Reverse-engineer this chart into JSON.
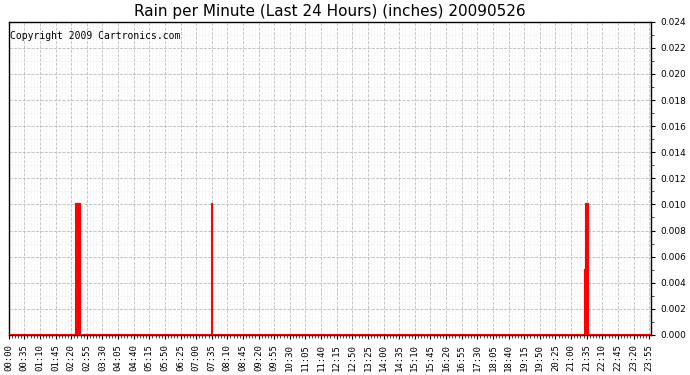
{
  "title": "Rain per Minute (Last 24 Hours) (inches) 20090526",
  "copyright_text": "Copyright 2009 Cartronics.com",
  "ylim": [
    0,
    0.024
  ],
  "yticks": [
    0.0,
    0.002,
    0.004,
    0.006,
    0.008,
    0.01,
    0.012,
    0.014,
    0.016,
    0.018,
    0.02,
    0.022,
    0.024
  ],
  "background_color": "#ffffff",
  "plot_bg_color": "#ffffff",
  "line_color": "#ff0000",
  "baseline_color": "#ff0000",
  "grid_major_color": "#bbbbbb",
  "grid_minor_color": "#dddddd",
  "title_fontsize": 11,
  "copyright_fontsize": 7,
  "tick_fontsize": 6.5,
  "total_minutes": 1440,
  "rain_spikes": [
    {
      "minute": 150,
      "value": 0.01
    },
    {
      "minute": 153,
      "value": 0.01
    },
    {
      "minute": 154,
      "value": 0.01
    },
    {
      "minute": 155,
      "value": 0.01
    },
    {
      "minute": 156,
      "value": 0.005
    },
    {
      "minute": 157,
      "value": 0.01
    },
    {
      "minute": 158,
      "value": 0.01
    },
    {
      "minute": 159,
      "value": 0.01
    },
    {
      "minute": 455,
      "value": 0.01
    },
    {
      "minute": 1292,
      "value": 0.005
    },
    {
      "minute": 1294,
      "value": 0.01
    },
    {
      "minute": 1296,
      "value": 0.01
    },
    {
      "minute": 1297,
      "value": 0.01
    },
    {
      "minute": 1298,
      "value": 0.01
    }
  ],
  "x_tick_interval": 35
}
